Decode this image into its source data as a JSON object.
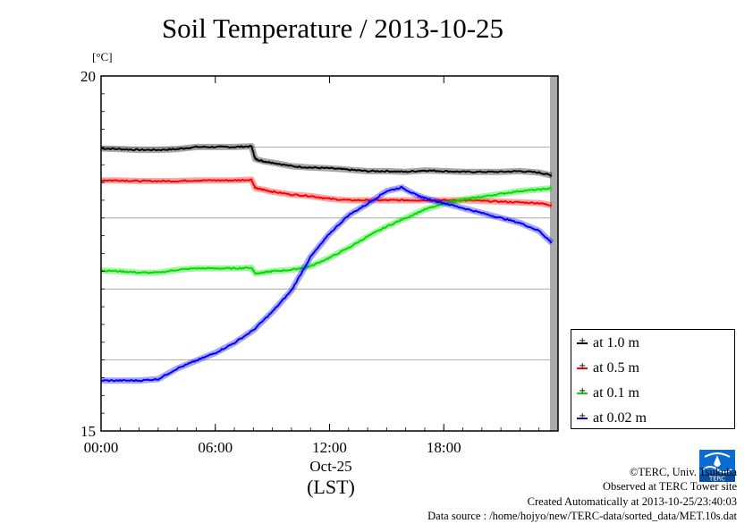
{
  "title": "Soil Temperature / 2013-10-25",
  "y_unit": "[°C]",
  "x_center_label": "Oct-25",
  "x_unit": "(LST)",
  "footer": {
    "copyright": "©TERC, Univ. Tsukuba",
    "site": "Observed at TERC Tower site",
    "created": "Created Automatically at 2013-10-25/23:40:03",
    "source": "Data source : /home/hojyo/new/TERC-data/sorted_data/MET.10s.dat"
  },
  "colors": {
    "black": "#000000",
    "red": "#ff0000",
    "green": "#00dd00",
    "blue": "#0000ff"
  },
  "chart_data": {
    "type": "line",
    "title": "Soil Temperature / 2013-10-25",
    "ylabel": "[°C]",
    "xlabel": "(LST)",
    "ylim": [
      15,
      20
    ],
    "xlim": [
      0,
      24
    ],
    "y_ticks": [
      15,
      20
    ],
    "x_ticks": [
      {
        "value": 0,
        "label": "00:00"
      },
      {
        "value": 6,
        "label": "06:00"
      },
      {
        "value": 12,
        "label": "12:00"
      },
      {
        "value": 18,
        "label": "18:00"
      }
    ],
    "grid": "horizontal",
    "legend_position": "right-bottom",
    "data_end_hour": 23.67,
    "series": [
      {
        "name": "at 1.0 m",
        "color": "#000000",
        "x": [
          0,
          1,
          2,
          3,
          4,
          5,
          6,
          7,
          7.9,
          8.1,
          8.5,
          9,
          10,
          11,
          12,
          13,
          14,
          15,
          16,
          17,
          18,
          19,
          20,
          21,
          22,
          23,
          23.67
        ],
        "y": [
          18.98,
          18.97,
          18.96,
          18.96,
          18.97,
          19.0,
          19.0,
          19.0,
          19.01,
          18.83,
          18.8,
          18.78,
          18.73,
          18.71,
          18.7,
          18.68,
          18.66,
          18.66,
          18.65,
          18.67,
          18.66,
          18.65,
          18.65,
          18.65,
          18.66,
          18.64,
          18.6
        ]
      },
      {
        "name": "at 0.5 m",
        "color": "#ff0000",
        "x": [
          0,
          1,
          2,
          3,
          4,
          5,
          6,
          7,
          7.9,
          8.1,
          8.5,
          9,
          10,
          11,
          12,
          13,
          14,
          15,
          16,
          17,
          18,
          19,
          20,
          21,
          22,
          23,
          23.67
        ],
        "y": [
          18.53,
          18.53,
          18.52,
          18.52,
          18.52,
          18.53,
          18.53,
          18.53,
          18.54,
          18.42,
          18.4,
          18.37,
          18.33,
          18.31,
          18.27,
          18.25,
          18.25,
          18.25,
          18.25,
          18.25,
          18.25,
          18.25,
          18.24,
          18.23,
          18.22,
          18.21,
          18.18
        ]
      },
      {
        "name": "at 0.1 m",
        "color": "#00dd00",
        "x": [
          0,
          1,
          2,
          3,
          4,
          5,
          6,
          7,
          7.9,
          8.1,
          8.5,
          9,
          10,
          11,
          12,
          13,
          14,
          15,
          16,
          17,
          18,
          19,
          20,
          21,
          22,
          23,
          23.67
        ],
        "y": [
          17.26,
          17.25,
          17.23,
          17.23,
          17.27,
          17.29,
          17.29,
          17.29,
          17.3,
          17.22,
          17.23,
          17.25,
          17.27,
          17.32,
          17.44,
          17.58,
          17.74,
          17.88,
          18.0,
          18.12,
          18.2,
          18.26,
          18.3,
          18.34,
          18.38,
          18.4,
          18.42
        ]
      },
      {
        "name": "at 0.02 m",
        "color": "#0000ff",
        "x": [
          0,
          1,
          2,
          3,
          4,
          5,
          6,
          7,
          8,
          9,
          10,
          11,
          12,
          13,
          14,
          15,
          15.8,
          16.5,
          17,
          18,
          19,
          20,
          21,
          22,
          23,
          23.67
        ],
        "y": [
          15.71,
          15.71,
          15.71,
          15.73,
          15.88,
          15.99,
          16.1,
          16.24,
          16.42,
          16.68,
          16.98,
          17.45,
          17.78,
          18.04,
          18.2,
          18.38,
          18.43,
          18.33,
          18.28,
          18.21,
          18.14,
          18.07,
          18.0,
          17.93,
          17.82,
          17.65
        ]
      }
    ]
  }
}
